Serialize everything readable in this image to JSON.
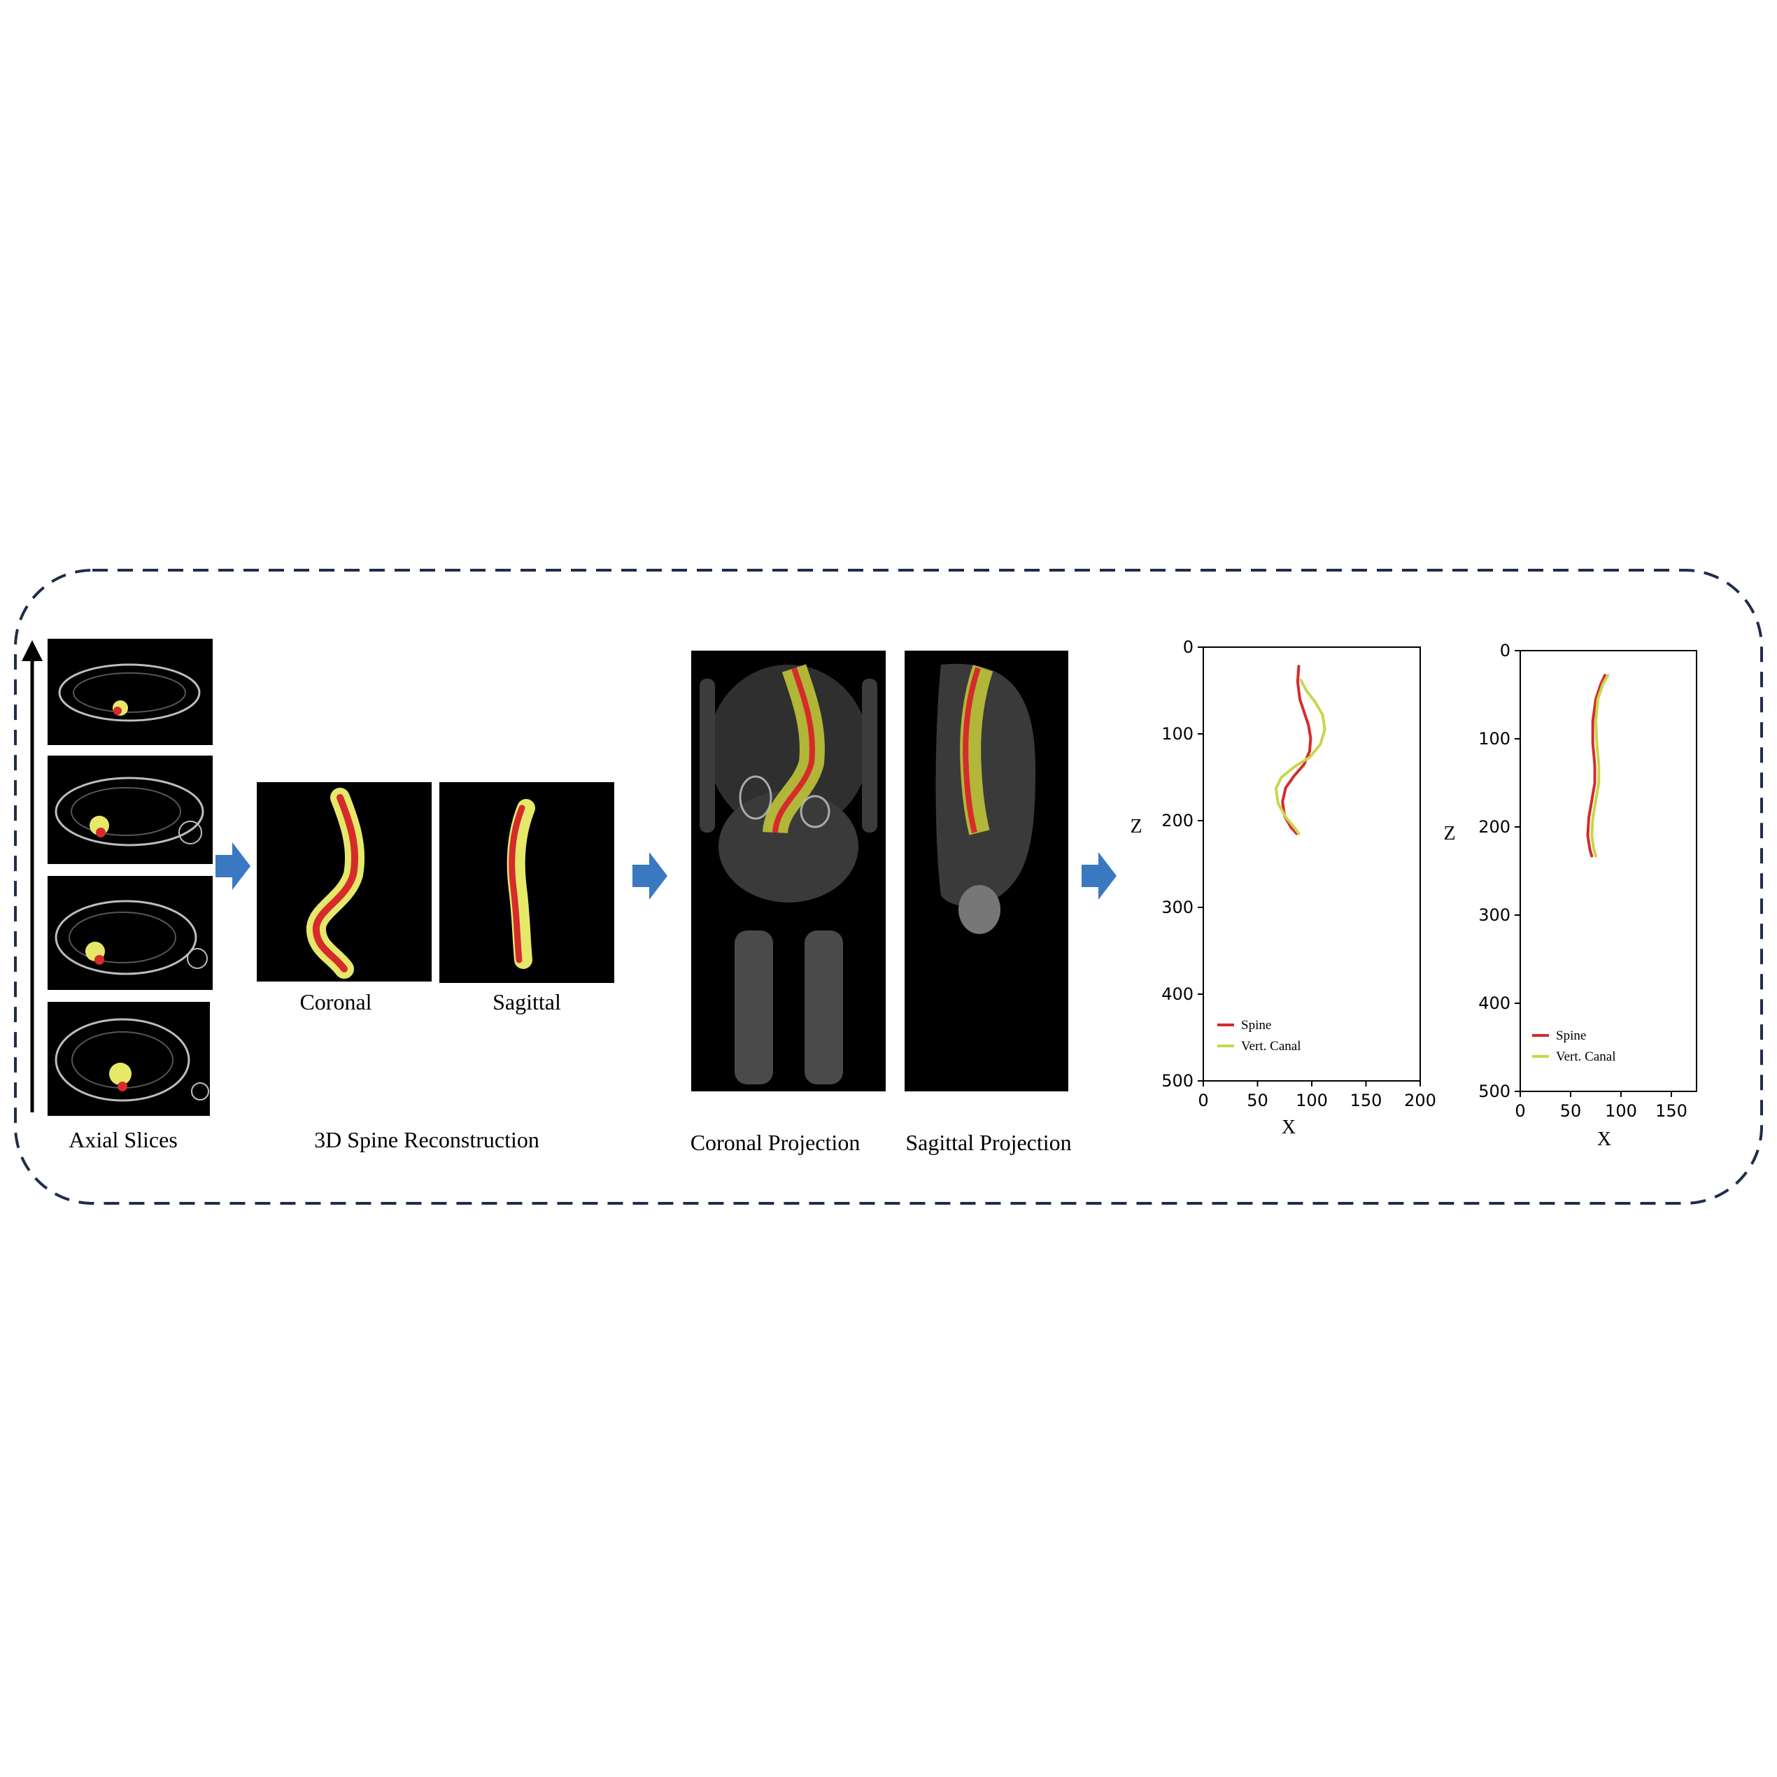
{
  "captions": {
    "axial": "Axial Slices",
    "reconstruction": "3D Spine Reconstruction",
    "coronal": "Coronal",
    "sagittal": "Sagittal",
    "coronal_projection": "Coronal Projection",
    "sagittal_projection": "Sagittal Projection"
  },
  "colors": {
    "frame": "#1f2d4a",
    "arrow": "#3a78c2",
    "spine": "#d62b2b",
    "canal": "#c8d64a",
    "canal_fill": "#e6e86a",
    "background_image": "#000000"
  },
  "chart_data": [
    {
      "type": "line",
      "title": "",
      "xlabel": "X",
      "ylabel": "Z",
      "xlim": [
        0,
        200
      ],
      "ylim": [
        500,
        0
      ],
      "y_inverted": true,
      "xticks": [
        "0",
        "50",
        "100",
        "150",
        "200"
      ],
      "yticks": [
        "0",
        "100",
        "200",
        "300",
        "400",
        "500"
      ],
      "legend": "lower-left",
      "series": [
        {
          "name": "Spine",
          "color": "#d62b2b",
          "x": [
            88,
            87,
            89,
            93,
            97,
            99,
            98,
            93,
            84,
            76,
            73,
            75,
            81,
            86
          ],
          "y": [
            22,
            40,
            60,
            75,
            90,
            105,
            120,
            135,
            148,
            162,
            178,
            195,
            208,
            215
          ]
        },
        {
          "name": "Vert. Canal",
          "color": "#c8d64a",
          "x": [
            90,
            95,
            103,
            110,
            112,
            108,
            98,
            84,
            72,
            67,
            69,
            76,
            84,
            88
          ],
          "y": [
            38,
            50,
            63,
            78,
            95,
            112,
            127,
            138,
            150,
            163,
            180,
            196,
            208,
            215
          ]
        }
      ]
    },
    {
      "type": "line",
      "title": "",
      "xlabel": "X",
      "ylabel": "Z",
      "xlim": [
        0,
        175
      ],
      "ylim": [
        500,
        0
      ],
      "y_inverted": true,
      "xticks": [
        "0",
        "50",
        "100",
        "150"
      ],
      "yticks": [
        "0",
        "100",
        "200",
        "300",
        "400",
        "500"
      ],
      "legend": "lower-left",
      "series": [
        {
          "name": "Spine",
          "color": "#d62b2b",
          "x": [
            84,
            80,
            75,
            72,
            72,
            74,
            74,
            71,
            68,
            67,
            69,
            71
          ],
          "y": [
            28,
            38,
            55,
            80,
            105,
            130,
            150,
            170,
            190,
            210,
            225,
            233
          ]
        },
        {
          "name": "Vert. Canal",
          "color": "#c8d64a",
          "x": [
            87,
            82,
            77,
            75,
            76,
            78,
            78,
            75,
            72,
            71,
            73,
            75
          ],
          "y": [
            28,
            38,
            55,
            80,
            105,
            130,
            150,
            170,
            190,
            210,
            225,
            233
          ]
        }
      ]
    }
  ]
}
